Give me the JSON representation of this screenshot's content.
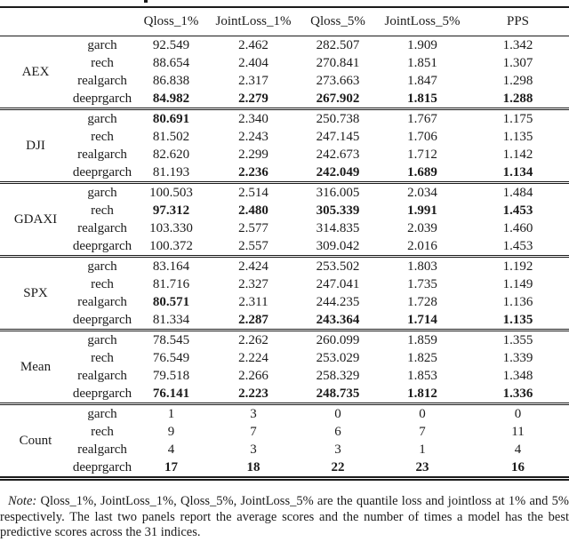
{
  "page": {
    "background": "#ffffff",
    "text_color": "#1b1b1b"
  },
  "table": {
    "headers": {
      "index": "",
      "model": "",
      "cols": [
        "Qloss_1%",
        "JointLoss_1%",
        "Qloss_5%",
        "JointLoss_5%",
        "PPS"
      ]
    },
    "groups": [
      {
        "label": "AEX",
        "rows": [
          {
            "model": "garch",
            "values": [
              "92.549",
              "2.462",
              "282.507",
              "1.909",
              "1.342"
            ],
            "bold": []
          },
          {
            "model": "rech",
            "values": [
              "88.654",
              "2.404",
              "270.841",
              "1.851",
              "1.307"
            ],
            "bold": []
          },
          {
            "model": "realgarch",
            "values": [
              "86.838",
              "2.317",
              "273.663",
              "1.847",
              "1.298"
            ],
            "bold": []
          },
          {
            "model": "deeprgarch",
            "values": [
              "84.982",
              "2.279",
              "267.902",
              "1.815",
              "1.288"
            ],
            "bold": [
              0,
              1,
              2,
              3,
              4
            ]
          }
        ]
      },
      {
        "label": "DJI",
        "rows": [
          {
            "model": "garch",
            "values": [
              "80.691",
              "2.340",
              "250.738",
              "1.767",
              "1.175"
            ],
            "bold": [
              0
            ]
          },
          {
            "model": "rech",
            "values": [
              "81.502",
              "2.243",
              "247.145",
              "1.706",
              "1.135"
            ],
            "bold": []
          },
          {
            "model": "realgarch",
            "values": [
              "82.620",
              "2.299",
              "242.673",
              "1.712",
              "1.142"
            ],
            "bold": []
          },
          {
            "model": "deeprgarch",
            "values": [
              "81.193",
              "2.236",
              "242.049",
              "1.689",
              "1.134"
            ],
            "bold": [
              1,
              2,
              3,
              4
            ]
          }
        ]
      },
      {
        "label": "GDAXI",
        "rows": [
          {
            "model": "garch",
            "values": [
              "100.503",
              "2.514",
              "316.005",
              "2.034",
              "1.484"
            ],
            "bold": []
          },
          {
            "model": "rech",
            "values": [
              "97.312",
              "2.480",
              "305.339",
              "1.991",
              "1.453"
            ],
            "bold": [
              0,
              1,
              2,
              3,
              4
            ]
          },
          {
            "model": "realgarch",
            "values": [
              "103.330",
              "2.577",
              "314.835",
              "2.039",
              "1.460"
            ],
            "bold": []
          },
          {
            "model": "deeprgarch",
            "values": [
              "100.372",
              "2.557",
              "309.042",
              "2.016",
              "1.453"
            ],
            "bold": []
          }
        ]
      },
      {
        "label": "SPX",
        "rows": [
          {
            "model": "garch",
            "values": [
              "83.164",
              "2.424",
              "253.502",
              "1.803",
              "1.192"
            ],
            "bold": []
          },
          {
            "model": "rech",
            "values": [
              "81.716",
              "2.327",
              "247.041",
              "1.735",
              "1.149"
            ],
            "bold": []
          },
          {
            "model": "realgarch",
            "values": [
              "80.571",
              "2.311",
              "244.235",
              "1.728",
              "1.136"
            ],
            "bold": [
              0
            ]
          },
          {
            "model": "deeprgarch",
            "values": [
              "81.334",
              "2.287",
              "243.364",
              "1.714",
              "1.135"
            ],
            "bold": [
              1,
              2,
              3,
              4
            ]
          }
        ]
      },
      {
        "label": "Mean",
        "rows": [
          {
            "model": "garch",
            "values": [
              "78.545",
              "2.262",
              "260.099",
              "1.859",
              "1.355"
            ],
            "bold": []
          },
          {
            "model": "rech",
            "values": [
              "76.549",
              "2.224",
              "253.029",
              "1.825",
              "1.339"
            ],
            "bold": []
          },
          {
            "model": "realgarch",
            "values": [
              "79.518",
              "2.266",
              "258.329",
              "1.853",
              "1.348"
            ],
            "bold": []
          },
          {
            "model": "deeprgarch",
            "values": [
              "76.141",
              "2.223",
              "248.735",
              "1.812",
              "1.336"
            ],
            "bold": [
              0,
              1,
              2,
              3,
              4
            ]
          }
        ]
      },
      {
        "label": "Count",
        "rows": [
          {
            "model": "garch",
            "values": [
              "1",
              "3",
              "0",
              "0",
              "0"
            ],
            "bold": []
          },
          {
            "model": "rech",
            "values": [
              "9",
              "7",
              "6",
              "7",
              "11"
            ],
            "bold": []
          },
          {
            "model": "realgarch",
            "values": [
              "4",
              "3",
              "3",
              "1",
              "4"
            ],
            "bold": []
          },
          {
            "model": "deeprgarch",
            "values": [
              "17",
              "18",
              "22",
              "23",
              "16"
            ],
            "bold": [
              0,
              1,
              2,
              3,
              4
            ]
          }
        ]
      }
    ]
  },
  "note": {
    "label": "Note:",
    "text": "Qloss_1%, JointLoss_1%, Qloss_5%, JointLoss_5% are the quantile loss and jointloss at 1% and 5% respectively. The last two panels report the average scores and the number of times a model has the best predictive scores across the 31 indices."
  }
}
